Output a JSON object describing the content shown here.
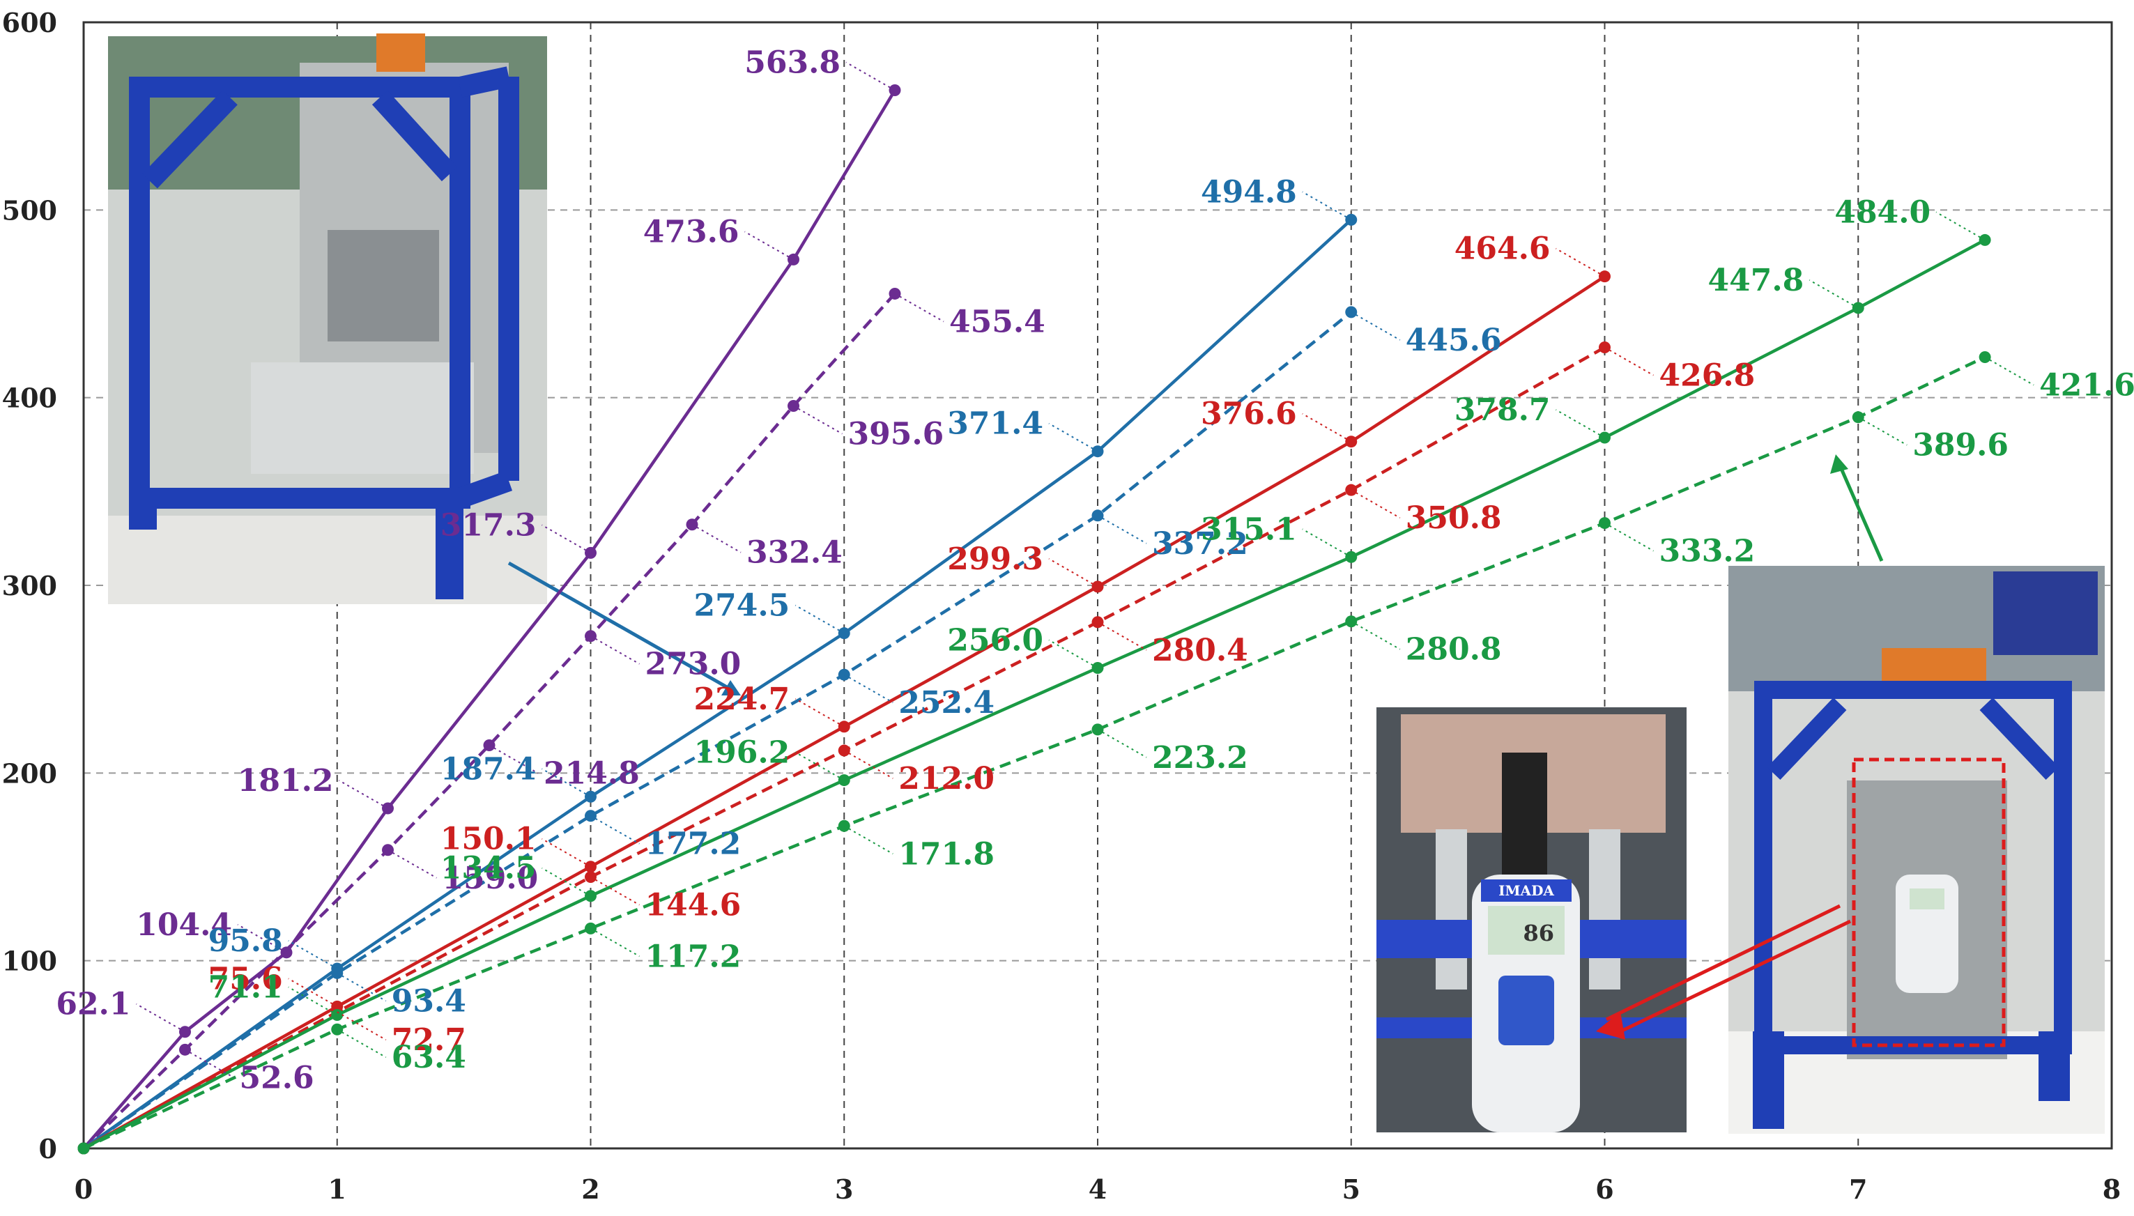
{
  "chart_data": {
    "type": "line",
    "title": "",
    "xlabel": "",
    "ylabel": "",
    "xlim": [
      0,
      8
    ],
    "ylim": [
      0,
      600
    ],
    "x_ticks": [
      "0",
      "1",
      "2",
      "3",
      "4",
      "5",
      "6",
      "7",
      "8"
    ],
    "y_ticks": [
      "0",
      "100",
      "200",
      "300",
      "400",
      "500",
      "600"
    ],
    "grid": true,
    "series": [
      {
        "color": "#6b2c91",
        "dash": false,
        "points": [
          [
            0,
            0
          ],
          [
            0.4,
            62.1
          ],
          [
            0.8,
            104.4
          ],
          [
            1.2,
            181.2
          ],
          [
            2,
            317.3
          ],
          [
            2.8,
            473.6
          ],
          [
            3.2,
            563.8
          ]
        ],
        "labels": [
          "",
          "62.1",
          "104.4",
          "181.2",
          "317.3",
          "473.6",
          "563.8"
        ]
      },
      {
        "color": "#6b2c91",
        "dash": true,
        "points": [
          [
            0,
            0
          ],
          [
            0.4,
            52.6
          ],
          [
            1.2,
            159.0
          ],
          [
            1.6,
            214.8
          ],
          [
            2,
            273.0
          ],
          [
            2.4,
            332.4
          ],
          [
            2.8,
            395.6
          ],
          [
            3.2,
            455.4
          ]
        ],
        "labels": [
          "",
          "52.6",
          "159.0",
          "214.8",
          "273.0",
          "332.4",
          "395.6",
          "455.4"
        ]
      },
      {
        "color": "#1f6fa8",
        "dash": false,
        "points": [
          [
            0,
            0
          ],
          [
            1,
            95.8
          ],
          [
            2,
            187.4
          ],
          [
            3,
            274.5
          ],
          [
            4,
            371.4
          ],
          [
            5,
            494.8
          ]
        ],
        "labels": [
          "",
          "95.8",
          "187.4",
          "274.5",
          "371.4",
          "494.8"
        ]
      },
      {
        "color": "#1f6fa8",
        "dash": true,
        "points": [
          [
            0,
            0
          ],
          [
            1,
            93.4
          ],
          [
            2,
            177.2
          ],
          [
            3,
            252.4
          ],
          [
            4,
            337.2
          ],
          [
            5,
            445.6
          ]
        ],
        "labels": [
          "",
          "93.4",
          "177.2",
          "252.4",
          "337.2",
          "445.6"
        ]
      },
      {
        "color": "#cc2020",
        "dash": false,
        "points": [
          [
            0,
            0
          ],
          [
            1,
            75.6
          ],
          [
            2,
            150.1
          ],
          [
            3,
            224.7
          ],
          [
            4,
            299.3
          ],
          [
            5,
            376.6
          ],
          [
            6,
            464.6
          ]
        ],
        "labels": [
          "",
          "75.6",
          "150.1",
          "224.7",
          "299.3",
          "376.6",
          "464.6"
        ]
      },
      {
        "color": "#cc2020",
        "dash": true,
        "points": [
          [
            0,
            0
          ],
          [
            1,
            72.7
          ],
          [
            2,
            144.6
          ],
          [
            3,
            212.0
          ],
          [
            4,
            280.4
          ],
          [
            5,
            350.8
          ],
          [
            6,
            426.8
          ]
        ],
        "labels": [
          "",
          "72.7",
          "144.6",
          "212.0",
          "280.4",
          "350.8",
          "426.8"
        ]
      },
      {
        "color": "#1a9a44",
        "dash": false,
        "points": [
          [
            0,
            0
          ],
          [
            1,
            71.1
          ],
          [
            2,
            134.5
          ],
          [
            3,
            196.2
          ],
          [
            4,
            256.0
          ],
          [
            5,
            315.1
          ],
          [
            6,
            378.7
          ],
          [
            7,
            447.8
          ],
          [
            7.5,
            484.0
          ]
        ],
        "labels": [
          "",
          "71.1",
          "134.5",
          "196.2",
          "256.0",
          "315.1",
          "378.7",
          "447.8",
          "484.0"
        ]
      },
      {
        "color": "#1a9a44",
        "dash": true,
        "points": [
          [
            0,
            0
          ],
          [
            1,
            63.4
          ],
          [
            2,
            117.2
          ],
          [
            3,
            171.8
          ],
          [
            4,
            223.2
          ],
          [
            5,
            280.8
          ],
          [
            6,
            333.2
          ],
          [
            7,
            389.6
          ],
          [
            7.5,
            421.6
          ]
        ],
        "labels": [
          "",
          "63.4",
          "117.2",
          "171.8",
          "223.2",
          "280.8",
          "333.2",
          "389.6",
          "421.6"
        ]
      }
    ]
  },
  "photos": {
    "photo_1": "test-rig-photo",
    "photo_2": "force-gauge-closeup-photo",
    "photo_3": "test-rig-with-gauge-photo",
    "gauge_brand": "IMADA",
    "gauge_reading": "86"
  }
}
